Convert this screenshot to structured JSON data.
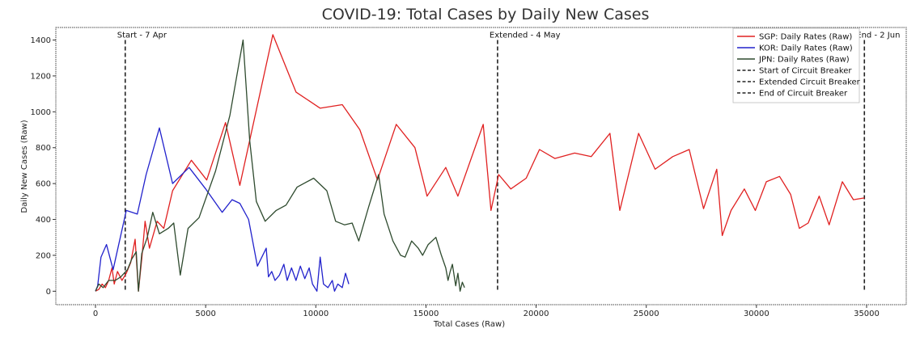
{
  "chart_data": {
    "type": "line",
    "title": "COVID-19: Total Cases by Daily New Cases",
    "xlabel": "Total Cases (Raw)",
    "ylabel": "Daily New Cases (Raw)",
    "xlim": [
      -1800,
      36800
    ],
    "ylim": [
      -75,
      1470
    ],
    "xticks": [
      0,
      5000,
      10000,
      15000,
      20000,
      25000,
      30000,
      35000
    ],
    "yticks": [
      0,
      200,
      400,
      600,
      800,
      1000,
      1200,
      1400
    ],
    "grid": false,
    "legend_position": "top-right",
    "series": [
      {
        "name": "SGP: Daily Rates (Raw)",
        "color": "#e02020",
        "points": [
          [
            0,
            0
          ],
          [
            150,
            10
          ],
          [
            300,
            40
          ],
          [
            450,
            20
          ],
          [
            600,
            60
          ],
          [
            750,
            130
          ],
          [
            850,
            40
          ],
          [
            1000,
            110
          ],
          [
            1200,
            60
          ],
          [
            1400,
            100
          ],
          [
            1600,
            160
          ],
          [
            1800,
            290
          ],
          [
            1950,
            0
          ],
          [
            2100,
            180
          ],
          [
            2250,
            390
          ],
          [
            2450,
            240
          ],
          [
            2800,
            390
          ],
          [
            3100,
            350
          ],
          [
            3500,
            560
          ],
          [
            4350,
            730
          ],
          [
            5050,
            620
          ],
          [
            5900,
            940
          ],
          [
            6550,
            590
          ],
          [
            8050,
            1430
          ],
          [
            9100,
            1110
          ],
          [
            10200,
            1020
          ],
          [
            11200,
            1040
          ],
          [
            12000,
            900
          ],
          [
            12800,
            620
          ],
          [
            13650,
            930
          ],
          [
            14500,
            800
          ],
          [
            15050,
            530
          ],
          [
            15900,
            690
          ],
          [
            16450,
            530
          ],
          [
            17600,
            930
          ],
          [
            17950,
            450
          ],
          [
            18300,
            650
          ],
          [
            18850,
            570
          ],
          [
            19550,
            630
          ],
          [
            20150,
            790
          ],
          [
            20850,
            740
          ],
          [
            21750,
            770
          ],
          [
            22500,
            750
          ],
          [
            23350,
            880
          ],
          [
            23800,
            450
          ],
          [
            24650,
            880
          ],
          [
            25400,
            680
          ],
          [
            26200,
            750
          ],
          [
            26950,
            790
          ],
          [
            27600,
            460
          ],
          [
            28200,
            680
          ],
          [
            28450,
            310
          ],
          [
            28850,
            450
          ],
          [
            29450,
            570
          ],
          [
            29950,
            450
          ],
          [
            30450,
            610
          ],
          [
            31050,
            640
          ],
          [
            31550,
            540
          ],
          [
            31950,
            350
          ],
          [
            32350,
            380
          ],
          [
            32850,
            530
          ],
          [
            33300,
            370
          ],
          [
            33900,
            610
          ],
          [
            34400,
            510
          ],
          [
            34900,
            520
          ]
        ]
      },
      {
        "name": "KOR: Daily Rates (Raw)",
        "color": "#2222cc",
        "points": [
          [
            0,
            0
          ],
          [
            100,
            30
          ],
          [
            250,
            190
          ],
          [
            500,
            260
          ],
          [
            800,
            120
          ],
          [
            1400,
            450
          ],
          [
            1900,
            430
          ],
          [
            2300,
            650
          ],
          [
            2900,
            910
          ],
          [
            3500,
            600
          ],
          [
            4250,
            690
          ],
          [
            5000,
            570
          ],
          [
            5750,
            440
          ],
          [
            6200,
            510
          ],
          [
            6550,
            490
          ],
          [
            6950,
            400
          ],
          [
            7350,
            140
          ],
          [
            7550,
            190
          ],
          [
            7750,
            240
          ],
          [
            7850,
            80
          ],
          [
            8000,
            110
          ],
          [
            8150,
            60
          ],
          [
            8350,
            90
          ],
          [
            8550,
            150
          ],
          [
            8700,
            60
          ],
          [
            8900,
            130
          ],
          [
            9100,
            60
          ],
          [
            9300,
            140
          ],
          [
            9500,
            70
          ],
          [
            9700,
            130
          ],
          [
            9850,
            40
          ],
          [
            10050,
            0
          ],
          [
            10200,
            190
          ],
          [
            10350,
            40
          ],
          [
            10550,
            20
          ],
          [
            10750,
            60
          ],
          [
            10850,
            0
          ],
          [
            11000,
            40
          ],
          [
            11200,
            20
          ],
          [
            11350,
            100
          ],
          [
            11500,
            40
          ]
        ]
      },
      {
        "name": "JPN: Daily Rates (Raw)",
        "color": "#2e4a2e",
        "points": [
          [
            0,
            0
          ],
          [
            150,
            40
          ],
          [
            350,
            20
          ],
          [
            600,
            60
          ],
          [
            900,
            60
          ],
          [
            1150,
            80
          ],
          [
            1450,
            120
          ],
          [
            1650,
            180
          ],
          [
            1850,
            220
          ],
          [
            1950,
            0
          ],
          [
            2100,
            210
          ],
          [
            2350,
            300
          ],
          [
            2600,
            440
          ],
          [
            2900,
            320
          ],
          [
            3300,
            350
          ],
          [
            3550,
            380
          ],
          [
            3850,
            90
          ],
          [
            4200,
            350
          ],
          [
            4700,
            410
          ],
          [
            5450,
            670
          ],
          [
            6100,
            980
          ],
          [
            6700,
            1400
          ],
          [
            7000,
            840
          ],
          [
            7300,
            500
          ],
          [
            7700,
            390
          ],
          [
            8200,
            450
          ],
          [
            8650,
            480
          ],
          [
            9150,
            580
          ],
          [
            9900,
            630
          ],
          [
            10500,
            560
          ],
          [
            10900,
            390
          ],
          [
            11300,
            370
          ],
          [
            11650,
            380
          ],
          [
            11950,
            280
          ],
          [
            12400,
            470
          ],
          [
            12850,
            650
          ],
          [
            13100,
            430
          ],
          [
            13500,
            280
          ],
          [
            13850,
            200
          ],
          [
            14050,
            190
          ],
          [
            14350,
            280
          ],
          [
            14650,
            240
          ],
          [
            14850,
            200
          ],
          [
            15100,
            260
          ],
          [
            15450,
            300
          ],
          [
            15700,
            200
          ],
          [
            15900,
            130
          ],
          [
            16000,
            60
          ],
          [
            16100,
            110
          ],
          [
            16200,
            150
          ],
          [
            16350,
            30
          ],
          [
            16450,
            100
          ],
          [
            16550,
            0
          ],
          [
            16650,
            50
          ],
          [
            16750,
            20
          ]
        ]
      }
    ],
    "vlines": [
      {
        "x": 1350,
        "label": "Start - 7 Apr",
        "legend": "Start of Circuit Breaker"
      },
      {
        "x": 18250,
        "label": "Extended - 4 May",
        "legend": "Extended Circuit Breaker"
      },
      {
        "x": 34900,
        "label": "End - 2 Jun",
        "legend": "End of Circuit Breaker"
      }
    ]
  }
}
